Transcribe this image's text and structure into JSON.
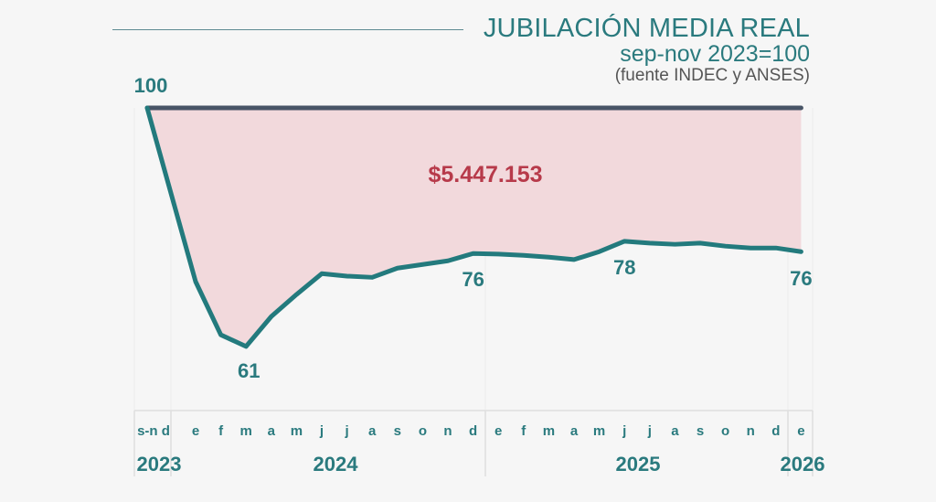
{
  "header": {
    "title": "JUBILACIÓN MEDIA REAL",
    "subtitle": "sep-nov 2023=100",
    "source": "(fuente INDEC y ANSES)"
  },
  "colors": {
    "line": "#237a7d",
    "baseline": "#485466",
    "fill": "#f2d9dc",
    "annotation": "#b73a4a",
    "text": "#2a7a7e",
    "grid": "#dedede"
  },
  "chart_data": {
    "type": "area",
    "title": "JUBILACIÓN MEDIA REAL",
    "subtitle": "sep-nov 2023=100",
    "source": "(fuente INDEC y ANSES)",
    "xlabel": "",
    "ylabel": "",
    "ylim": [
      55,
      100
    ],
    "grid": false,
    "baseline": 100,
    "categories": [
      "s-n d",
      "e",
      "f",
      "m",
      "a",
      "m",
      "j",
      "j",
      "a",
      "s",
      "o",
      "n",
      "d",
      "e",
      "f",
      "m",
      "a",
      "m",
      "j",
      "j",
      "a",
      "s",
      "o",
      "n",
      "d",
      "e"
    ],
    "years": [
      {
        "label": "2023",
        "start": 0,
        "end": 0
      },
      {
        "label": "2024",
        "start": 1,
        "end": 12
      },
      {
        "label": "2025",
        "start": 13,
        "end": 24
      },
      {
        "label": "2026",
        "start": 25,
        "end": 25
      }
    ],
    "series": [
      {
        "name": "Jubilación media real",
        "values": [
          100,
          71.6,
          62.9,
          61,
          65.9,
          69.5,
          72.9,
          72.5,
          72.3,
          73.8,
          74.4,
          75.0,
          76.2,
          76.1,
          75.9,
          75.6,
          75.2,
          76.5,
          78.2,
          77.9,
          77.7,
          77.9,
          77.4,
          77.1,
          77.1,
          76.5
        ]
      }
    ],
    "point_labels": [
      {
        "index": 0,
        "text": "100"
      },
      {
        "index": 3,
        "text": "61"
      },
      {
        "index": 12,
        "text": "76"
      },
      {
        "index": 18,
        "text": "78"
      },
      {
        "index": 25,
        "text": "76"
      }
    ],
    "annotations": [
      {
        "text": "$5.447.153",
        "where": "shaded area between baseline and line"
      }
    ]
  }
}
